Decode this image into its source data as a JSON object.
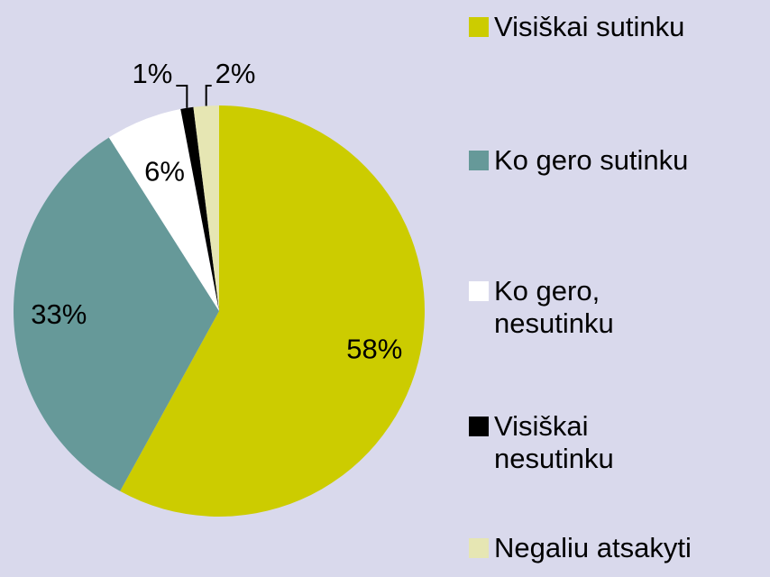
{
  "chart_data": {
    "type": "pie",
    "categories": [
      "Visiškai sutinku",
      "Ko gero sutinku",
      "Ko gero, nesutinku",
      "Visiškai nesutinku",
      "Negaliu atsakyti"
    ],
    "values": [
      58,
      33,
      6,
      1,
      2
    ],
    "value_labels": [
      "58%",
      "33%",
      "6%",
      "1%",
      "2%"
    ],
    "colors": [
      "#cccc00",
      "#669999",
      "#ffffff",
      "#000000",
      "#e6e6b3"
    ],
    "legend": "right"
  }
}
